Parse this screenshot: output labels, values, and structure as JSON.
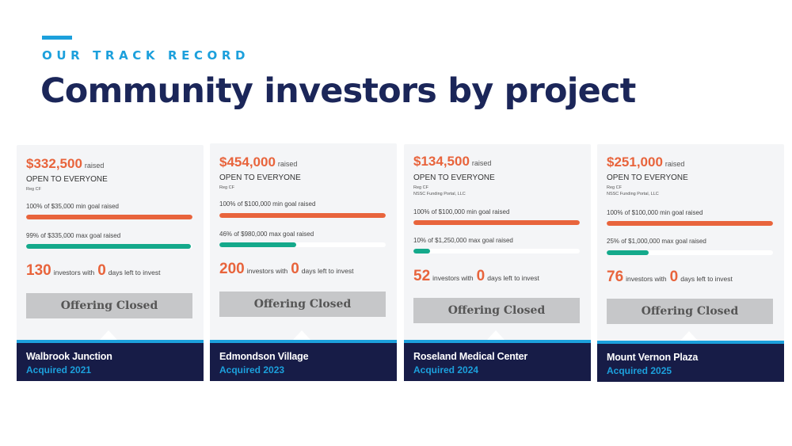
{
  "header": {
    "eyebrow": "OUR TRACK RECORD",
    "title": "Community investors by project"
  },
  "colors": {
    "accent_blue": "#1ca0dc",
    "navy": "#1b2659",
    "orange": "#e8643c",
    "teal": "#14a98b",
    "footer_navy": "#171c47"
  },
  "cards": [
    {
      "amount": "$332,500",
      "raised_word": "raised",
      "open_label": "OPEN TO EVERYONE",
      "reg_lines": [
        "Reg CF"
      ],
      "min_goal_text": "100% of $35,000 min goal raised",
      "min_goal_pct": 100,
      "max_goal_text": "99% of $335,000 max goal raised",
      "max_goal_pct": 99,
      "investors": "130",
      "investors_word": "investors with",
      "days_left": "0",
      "days_word": "days left to invest",
      "button_label": "Offering Closed",
      "project_name": "Walbrook Junction",
      "acquired": "Acquired 2021"
    },
    {
      "amount": "$454,000",
      "raised_word": "raised",
      "open_label": "OPEN TO EVERYONE",
      "reg_lines": [
        "Reg CF"
      ],
      "min_goal_text": "100% of $100,000 min goal raised",
      "min_goal_pct": 100,
      "max_goal_text": "46% of $980,000 max goal raised",
      "max_goal_pct": 46,
      "investors": "200",
      "investors_word": "investors with",
      "days_left": "0",
      "days_word": "days left to invest",
      "button_label": "Offering Closed",
      "project_name": "Edmondson Village",
      "acquired": "Acquired 2023"
    },
    {
      "amount": "$134,500",
      "raised_word": "raised",
      "open_label": "OPEN TO EVERYONE",
      "reg_lines": [
        "Reg CF",
        "NSSC Funding Portal, LLC"
      ],
      "min_goal_text": "100% of $100,000 min goal raised",
      "min_goal_pct": 100,
      "max_goal_text": "10% of $1,250,000 max goal raised",
      "max_goal_pct": 10,
      "investors": "52",
      "investors_word": "investors with",
      "days_left": "0",
      "days_word": "days left to invest",
      "button_label": "Offering Closed",
      "project_name": "Roseland Medical Center",
      "acquired": "Acquired 2024"
    },
    {
      "amount": "$251,000",
      "raised_word": "raised",
      "open_label": "OPEN TO EVERYONE",
      "reg_lines": [
        "Reg CF",
        "NSSC Funding Portal, LLC"
      ],
      "min_goal_text": "100% of $100,000 min goal raised",
      "min_goal_pct": 100,
      "max_goal_text": "25% of $1,000,000 max goal raised",
      "max_goal_pct": 25,
      "investors": "76",
      "investors_word": "investors with",
      "days_left": "0",
      "days_word": "days left to invest",
      "button_label": "Offering Closed",
      "project_name": "Mount Vernon Plaza",
      "acquired": "Acquired 2025"
    }
  ]
}
